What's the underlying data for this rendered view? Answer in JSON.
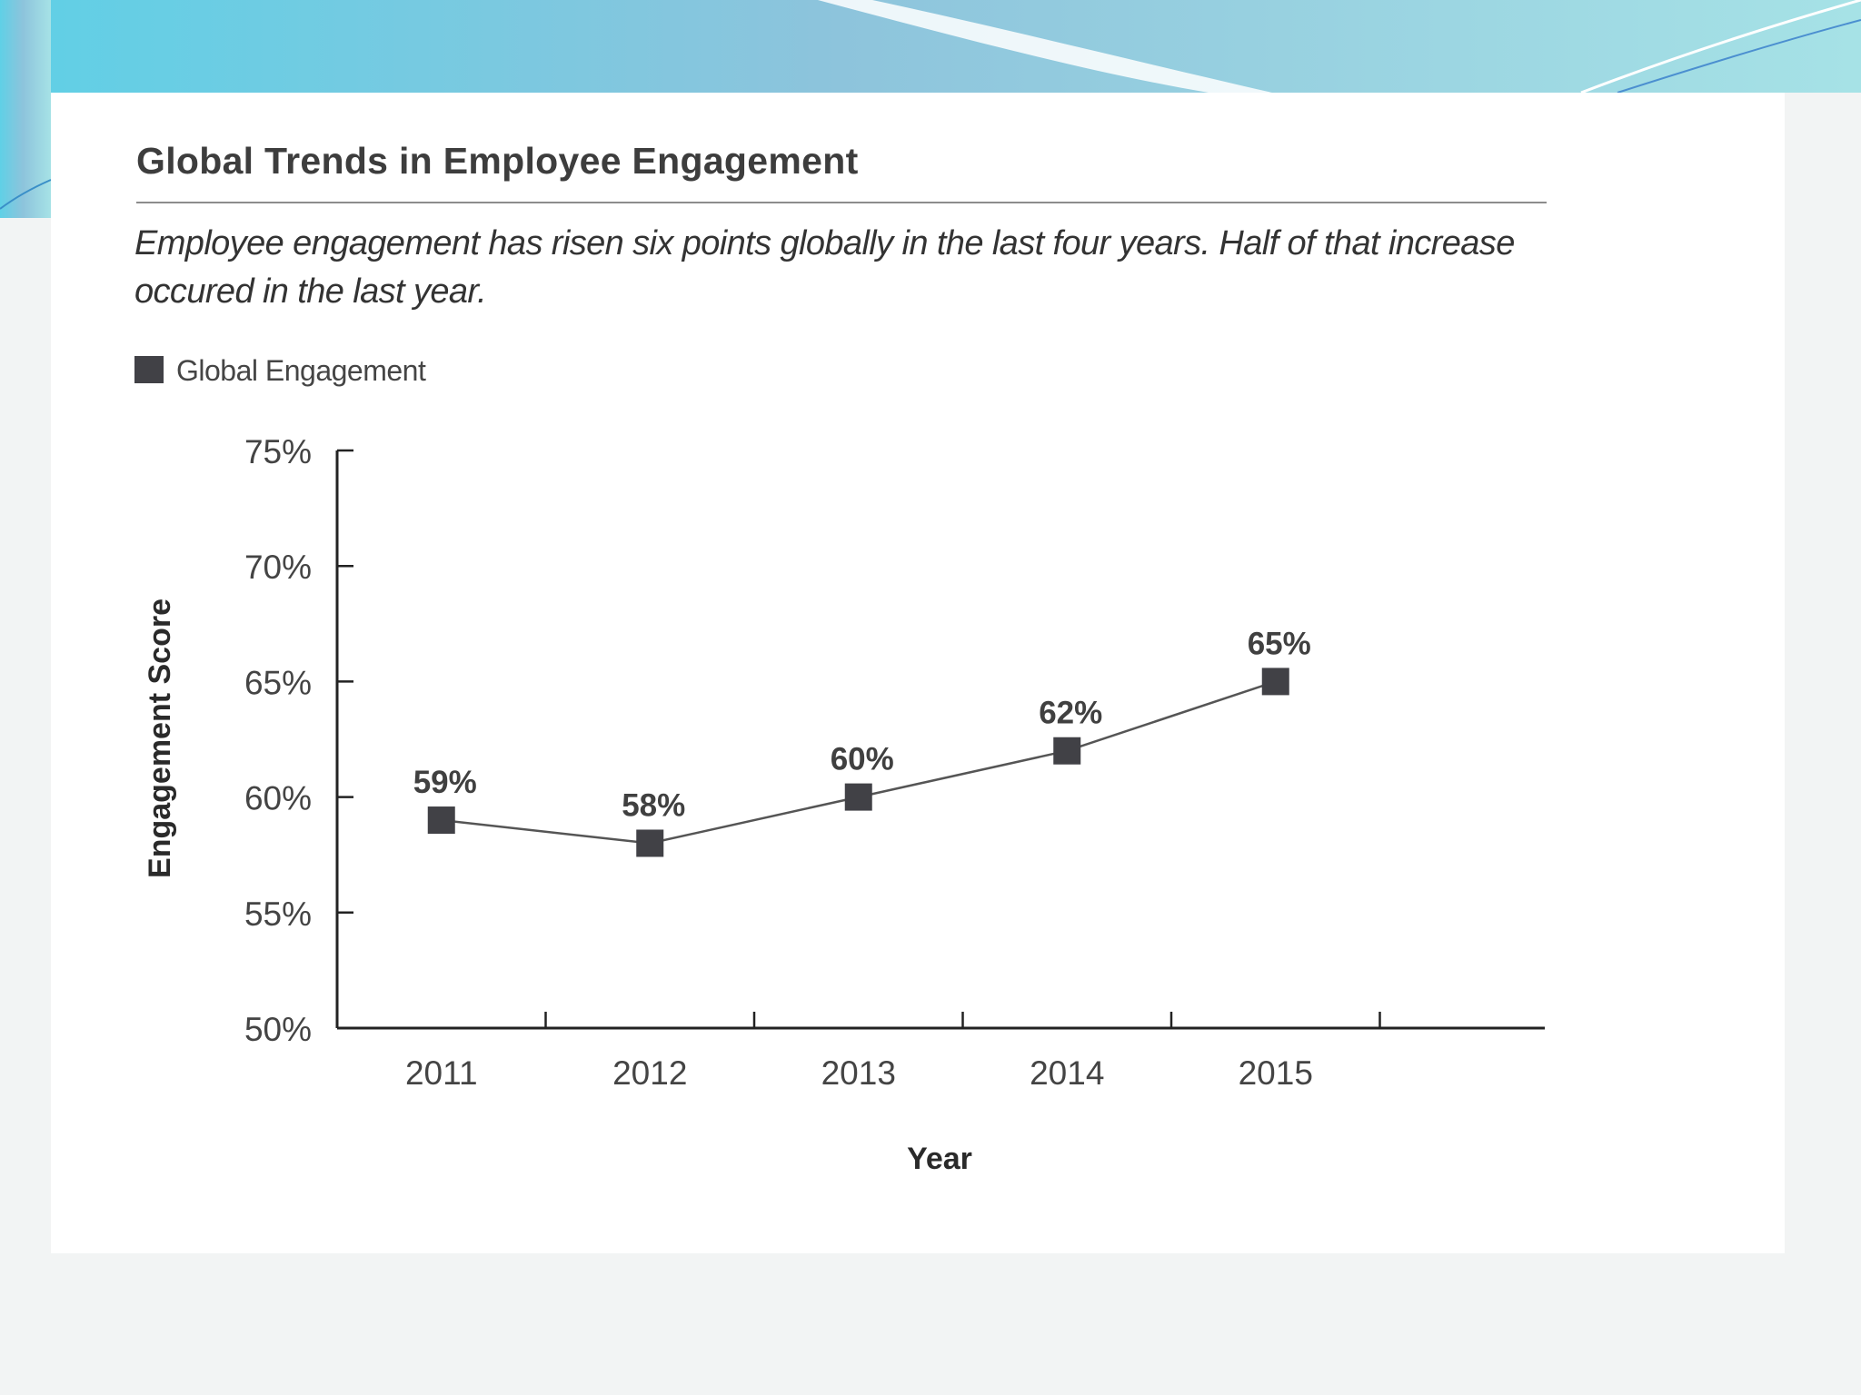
{
  "colors": {
    "marker": "#414146",
    "line": "#555555",
    "axis": "#222222",
    "slide_accent": "#7ec9df"
  },
  "chart_data": {
    "type": "line",
    "title": "Global Trends in Employee Engagement",
    "subtitle": "Employee engagement has risen six points globally in the last four years. Half of that increase occured in the last year.",
    "xlabel": "Year",
    "ylabel": "Engagement Score",
    "categories": [
      "2011",
      "2012",
      "2013",
      "2014",
      "2015"
    ],
    "series": [
      {
        "name": "Global Engagement",
        "values": [
          59,
          58,
          60,
          62,
          65
        ]
      }
    ],
    "data_labels": [
      "59%",
      "58%",
      "60%",
      "62%",
      "65%"
    ],
    "y_ticks": [
      "50%",
      "55%",
      "60%",
      "65%",
      "70%",
      "75%"
    ],
    "ylim": [
      50,
      75
    ],
    "grid": false,
    "legend_position": "top-left",
    "marker": "square"
  }
}
